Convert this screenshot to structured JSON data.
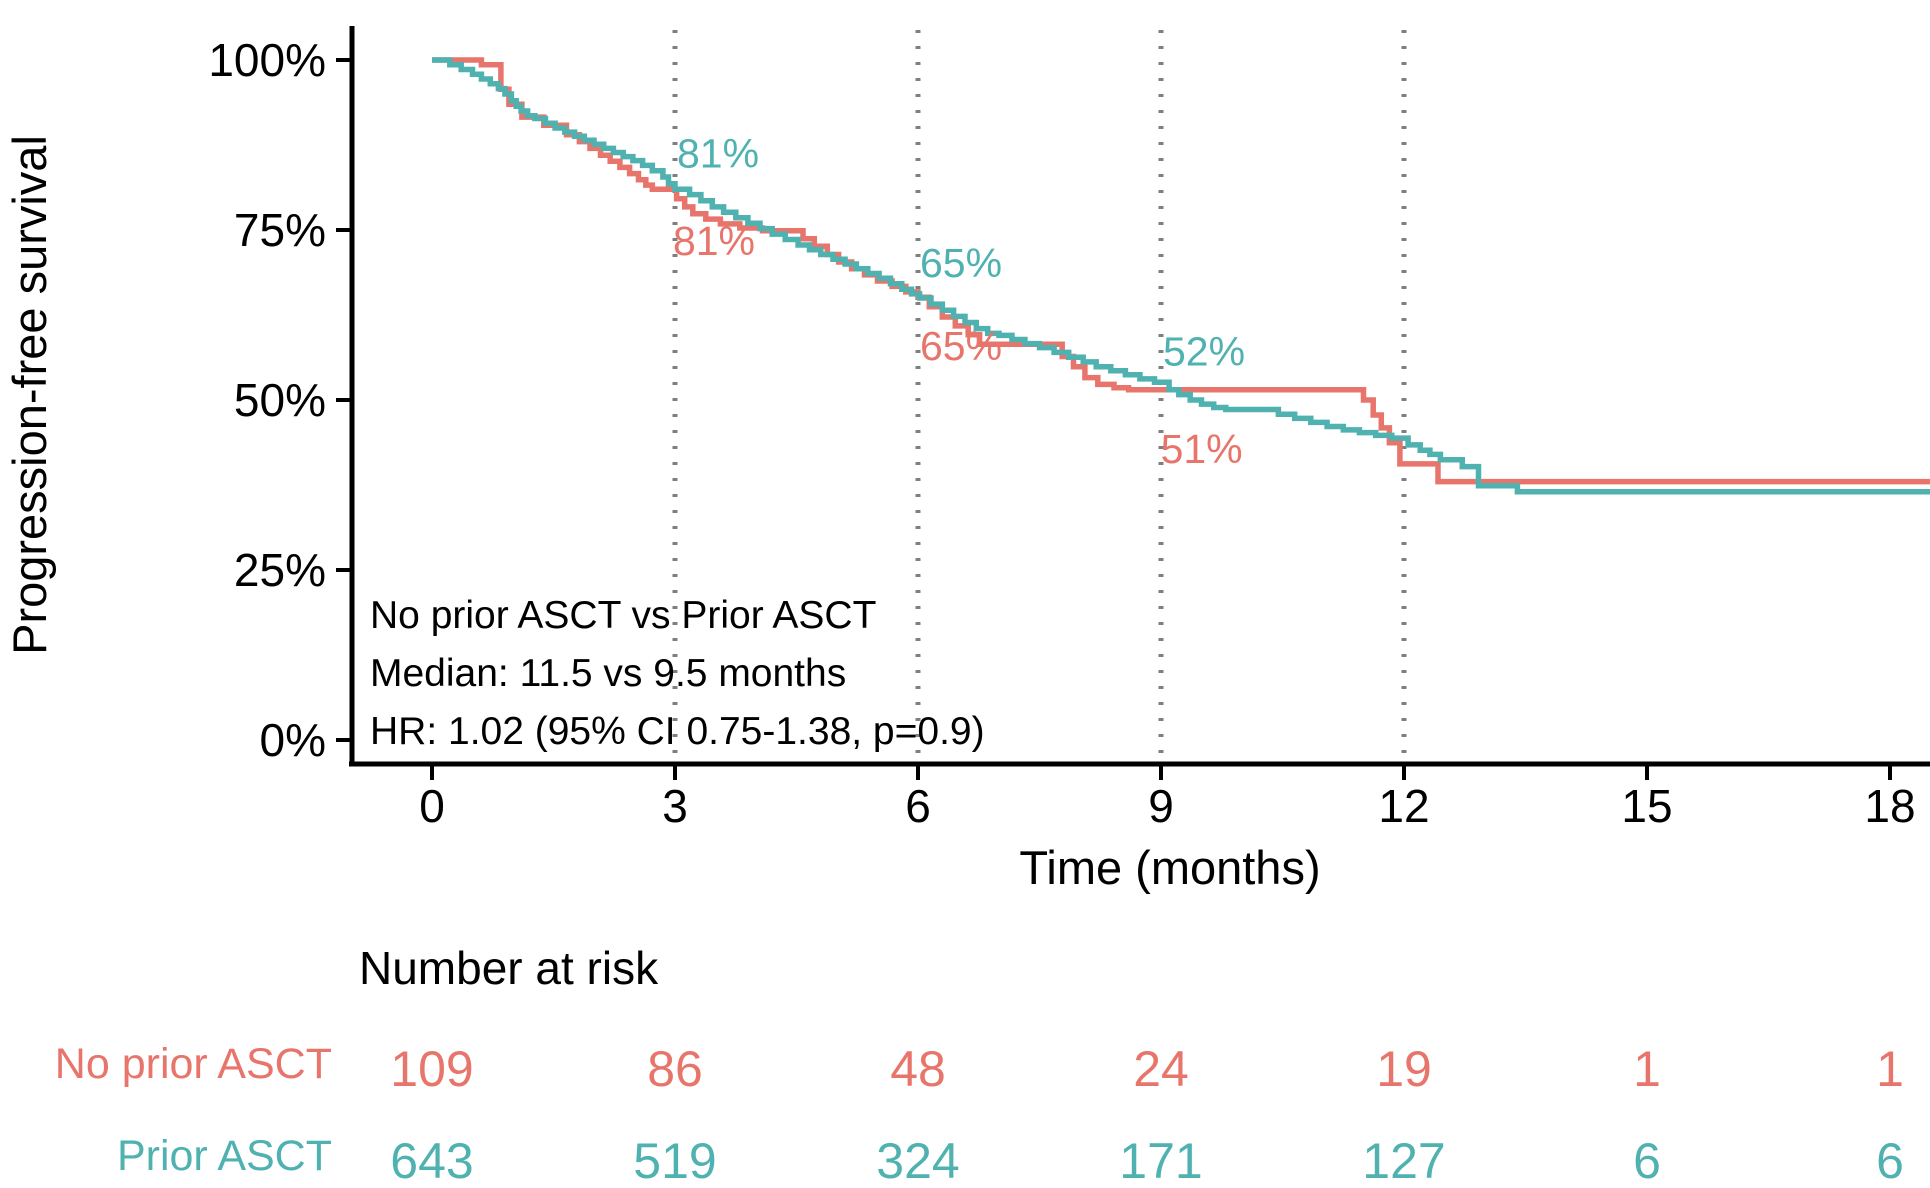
{
  "chart_data": {
    "type": "line",
    "subtype": "kaplan-meier-step-plot",
    "title": "",
    "xlabel": "Time (months)",
    "ylabel": "Progression-free survival",
    "x_ticks": [
      0,
      3,
      6,
      9,
      12,
      15,
      18
    ],
    "x_tick_labels": [
      "0",
      "3",
      "6",
      "9",
      "12",
      "15",
      "18"
    ],
    "y_ticks": [
      0,
      25,
      50,
      75,
      100
    ],
    "y_tick_labels": [
      "0%",
      "25%",
      "50%",
      "75%",
      "100%"
    ],
    "xlim": [
      0,
      18.5
    ],
    "ylim": [
      0,
      100
    ],
    "grid": false,
    "reference_vlines_months": [
      3,
      6,
      9,
      12
    ],
    "series": [
      {
        "name": "No prior ASCT",
        "color": "#e8756b",
        "steps": [
          [
            0,
            100
          ],
          [
            0.61,
            99.3
          ],
          [
            0.85,
            95.7
          ],
          [
            0.95,
            93.5
          ],
          [
            1.11,
            91.6
          ],
          [
            1.38,
            90.4
          ],
          [
            1.66,
            89.0
          ],
          [
            1.82,
            88.0
          ],
          [
            1.95,
            87.0
          ],
          [
            2.08,
            86.0
          ],
          [
            2.2,
            85.1
          ],
          [
            2.32,
            84.2
          ],
          [
            2.44,
            83.3
          ],
          [
            2.55,
            82.4
          ],
          [
            2.64,
            81.6
          ],
          [
            2.72,
            81.0
          ],
          [
            3.02,
            79.6
          ],
          [
            3.12,
            78.4
          ],
          [
            3.22,
            77.4
          ],
          [
            3.38,
            76.6
          ],
          [
            3.56,
            75.9
          ],
          [
            3.8,
            75.3
          ],
          [
            4.08,
            74.9
          ],
          [
            4.58,
            73.7
          ],
          [
            4.72,
            72.6
          ],
          [
            4.88,
            71.4
          ],
          [
            5.02,
            70.3
          ],
          [
            5.18,
            69.3
          ],
          [
            5.34,
            68.4
          ],
          [
            5.5,
            67.5
          ],
          [
            5.68,
            66.7
          ],
          [
            5.85,
            65.9
          ],
          [
            6.0,
            65.1
          ],
          [
            6.14,
            63.7
          ],
          [
            6.3,
            62.2
          ],
          [
            6.46,
            60.9
          ],
          [
            6.62,
            59.6
          ],
          [
            6.76,
            58.2
          ],
          [
            7.78,
            56.4
          ],
          [
            7.92,
            54.9
          ],
          [
            8.06,
            53.3
          ],
          [
            8.22,
            52.3
          ],
          [
            8.42,
            51.8
          ],
          [
            8.6,
            51.5
          ],
          [
            11.5,
            50.0
          ],
          [
            11.62,
            47.8
          ],
          [
            11.72,
            45.9
          ],
          [
            11.82,
            43.7
          ],
          [
            11.95,
            40.6
          ],
          [
            12.42,
            38.0
          ]
        ]
      },
      {
        "name": "Prior ASCT",
        "color": "#4fb2b0",
        "steps": [
          [
            0,
            100
          ],
          [
            0.22,
            99.3
          ],
          [
            0.36,
            98.6
          ],
          [
            0.5,
            97.9
          ],
          [
            0.61,
            97.2
          ],
          [
            0.72,
            96.5
          ],
          [
            0.82,
            95.8
          ],
          [
            0.9,
            95.0
          ],
          [
            0.98,
            94.0
          ],
          [
            1.04,
            93.2
          ],
          [
            1.1,
            92.5
          ],
          [
            1.18,
            91.8
          ],
          [
            1.27,
            91.4
          ],
          [
            1.4,
            90.7
          ],
          [
            1.52,
            90.0
          ],
          [
            1.64,
            89.4
          ],
          [
            1.76,
            88.8
          ],
          [
            1.88,
            88.2
          ],
          [
            2.0,
            87.6
          ],
          [
            2.12,
            87.0
          ],
          [
            2.24,
            86.4
          ],
          [
            2.36,
            85.8
          ],
          [
            2.48,
            85.2
          ],
          [
            2.6,
            84.5
          ],
          [
            2.72,
            83.7
          ],
          [
            2.85,
            82.8
          ],
          [
            2.92,
            81.8
          ],
          [
            3.0,
            81.0
          ],
          [
            3.18,
            80.2
          ],
          [
            3.32,
            79.3
          ],
          [
            3.46,
            78.4
          ],
          [
            3.6,
            77.6
          ],
          [
            3.75,
            76.8
          ],
          [
            3.9,
            76.0
          ],
          [
            4.05,
            75.2
          ],
          [
            4.2,
            74.4
          ],
          [
            4.36,
            73.6
          ],
          [
            4.52,
            72.8
          ],
          [
            4.66,
            72.1
          ],
          [
            4.8,
            71.4
          ],
          [
            4.95,
            70.7
          ],
          [
            5.1,
            70.0
          ],
          [
            5.24,
            69.3
          ],
          [
            5.38,
            68.6
          ],
          [
            5.52,
            67.9
          ],
          [
            5.66,
            67.1
          ],
          [
            5.8,
            66.3
          ],
          [
            5.92,
            65.6
          ],
          [
            6.02,
            65.0
          ],
          [
            6.16,
            64.1
          ],
          [
            6.3,
            63.2
          ],
          [
            6.44,
            62.3
          ],
          [
            6.58,
            61.4
          ],
          [
            6.72,
            60.5
          ],
          [
            6.86,
            59.8
          ],
          [
            7.0,
            59.5
          ],
          [
            7.16,
            58.9
          ],
          [
            7.32,
            58.3
          ],
          [
            7.5,
            57.7
          ],
          [
            7.68,
            57.0
          ],
          [
            7.86,
            56.3
          ],
          [
            8.04,
            55.6
          ],
          [
            8.2,
            54.9
          ],
          [
            8.38,
            54.3
          ],
          [
            8.56,
            53.7
          ],
          [
            8.74,
            53.1
          ],
          [
            8.92,
            52.6
          ],
          [
            9.1,
            51.5
          ],
          [
            9.22,
            50.8
          ],
          [
            9.36,
            50.0
          ],
          [
            9.5,
            49.4
          ],
          [
            9.65,
            48.9
          ],
          [
            9.8,
            48.6
          ],
          [
            10.45,
            47.9
          ],
          [
            10.65,
            47.3
          ],
          [
            10.85,
            46.7
          ],
          [
            11.05,
            46.1
          ],
          [
            11.25,
            45.6
          ],
          [
            11.45,
            45.2
          ],
          [
            11.65,
            44.8
          ],
          [
            11.85,
            44.4
          ],
          [
            12.05,
            43.4
          ],
          [
            12.2,
            42.6
          ],
          [
            12.32,
            42.0
          ],
          [
            12.45,
            41.2
          ],
          [
            12.72,
            40.2
          ],
          [
            12.92,
            37.4
          ],
          [
            13.4,
            36.5
          ]
        ]
      }
    ],
    "point_labels": [
      {
        "text": "81%",
        "series": "Prior ASCT",
        "month": 3.0,
        "pct_baseline": 84.2
      },
      {
        "text": "81%",
        "series": "No prior ASCT",
        "month": 2.95,
        "pct_baseline": 71.3
      },
      {
        "text": "65%",
        "series": "Prior ASCT",
        "month": 6.0,
        "pct_baseline": 68.1
      },
      {
        "text": "65%",
        "series": "No prior ASCT",
        "month": 6.0,
        "pct_baseline": 55.9
      },
      {
        "text": "52%",
        "series": "Prior ASCT",
        "month": 9.0,
        "pct_baseline": 55.1
      },
      {
        "text": "51%",
        "series": "No prior ASCT",
        "month": 8.97,
        "pct_baseline": 40.7
      }
    ],
    "annotation": {
      "lines": [
        "No prior ASCT vs Prior ASCT",
        "Median: 11.5 vs 9.5 months",
        "HR: 1.02 (95% CI 0.75-1.38, p=0.9)"
      ]
    },
    "risk_table": {
      "title": "Number at risk",
      "time_points": [
        0,
        3,
        6,
        9,
        12,
        15,
        18
      ],
      "rows": [
        {
          "label": "No prior ASCT",
          "color": "#e8756b",
          "values": [
            "109",
            "86",
            "48",
            "24",
            "19",
            "1",
            "1"
          ]
        },
        {
          "label": "Prior ASCT",
          "color": "#4fb2b0",
          "values": [
            "643",
            "519",
            "324",
            "171",
            "127",
            "6",
            "6"
          ]
        }
      ]
    },
    "style_colors": {
      "axis": "#000000",
      "text": "#000000",
      "vline": "#7f7f7f",
      "background": "#ffffff"
    }
  }
}
